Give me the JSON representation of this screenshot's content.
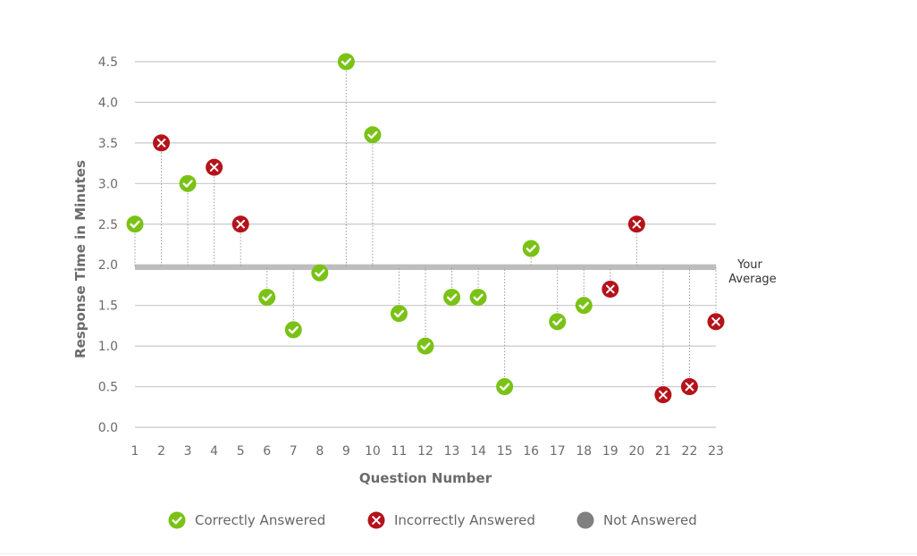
{
  "colors": {
    "correct": "#7ac215",
    "incorrect": "#b5121b",
    "not_answered": "#808080",
    "grid": "#c8c8c8",
    "average_line": "#bdbdbd",
    "text": "#6b6b6b"
  },
  "chart_data": {
    "type": "scatter",
    "title": "",
    "xlabel": "Question Number",
    "ylabel": "Response Time in Minutes",
    "ylim": [
      0,
      4.5
    ],
    "yticks": [
      "0.0",
      "0.5",
      "1.0",
      "1.5",
      "2.0",
      "2.5",
      "3.0",
      "3.5",
      "4.0",
      "4.5"
    ],
    "x": [
      1,
      2,
      3,
      4,
      5,
      6,
      7,
      8,
      9,
      10,
      11,
      12,
      13,
      14,
      15,
      16,
      17,
      18,
      19,
      20,
      21,
      22,
      23
    ],
    "xticks": [
      "1",
      "2",
      "3",
      "4",
      "5",
      "6",
      "7",
      "8",
      "9",
      "10",
      "11",
      "12",
      "13",
      "14",
      "15",
      "16",
      "17",
      "18",
      "19",
      "20",
      "21",
      "22",
      "23"
    ],
    "values": [
      2.5,
      3.5,
      3.0,
      3.2,
      2.5,
      1.6,
      1.2,
      1.9,
      4.5,
      3.6,
      1.4,
      1.0,
      1.6,
      1.6,
      0.5,
      2.2,
      1.3,
      1.5,
      1.7,
      2.5,
      0.4,
      0.5,
      1.3
    ],
    "status": [
      "correct",
      "incorrect",
      "correct",
      "incorrect",
      "incorrect",
      "correct",
      "correct",
      "correct",
      "correct",
      "correct",
      "correct",
      "correct",
      "correct",
      "correct",
      "correct",
      "correct",
      "correct",
      "correct",
      "incorrect",
      "incorrect",
      "incorrect",
      "incorrect",
      "incorrect"
    ],
    "average": 1.97,
    "average_label_line1": "Your",
    "average_label_line2": "Average",
    "legend": [
      {
        "key": "correct",
        "label": "Correctly Answered"
      },
      {
        "key": "incorrect",
        "label": "Incorrectly Answered"
      },
      {
        "key": "not_answered",
        "label": "Not Answered"
      }
    ]
  }
}
